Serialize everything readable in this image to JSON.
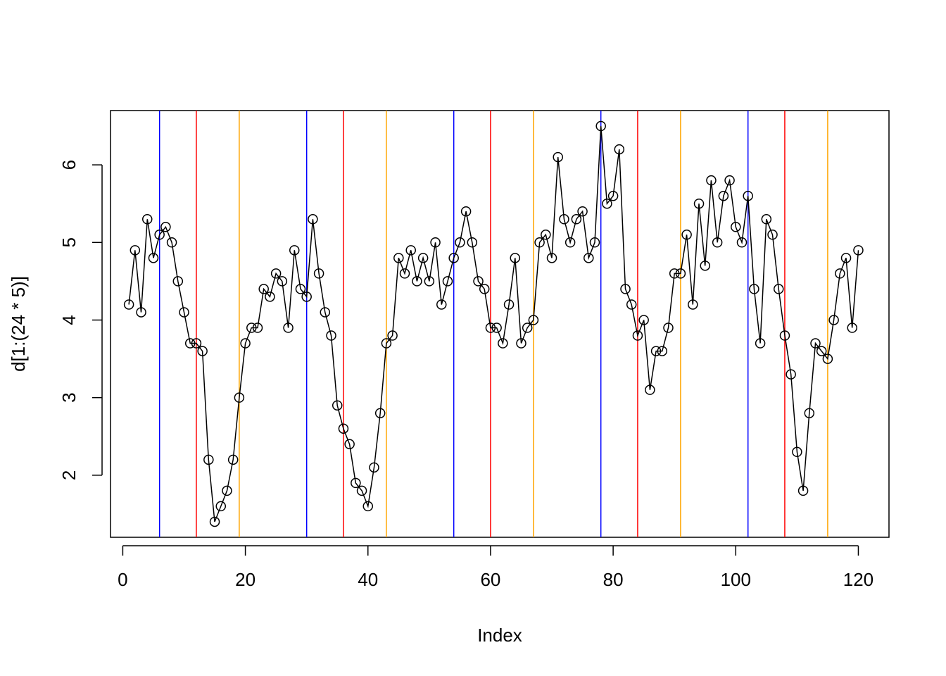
{
  "chart_data": {
    "type": "line",
    "title": "",
    "xlabel": "Index",
    "ylabel": "d[1:(24 * 5)]",
    "xlim": [
      -2,
      125
    ],
    "ylim": [
      1.2,
      6.7
    ],
    "xticks": [
      0,
      20,
      40,
      60,
      80,
      100,
      120
    ],
    "yticks": [
      2,
      3,
      4,
      5,
      6
    ],
    "grid": false,
    "legend": "none",
    "series": [
      {
        "color": "#000000",
        "marker": "open-circle",
        "x": [
          1,
          2,
          3,
          4,
          5,
          6,
          7,
          8,
          9,
          10,
          11,
          12,
          13,
          14,
          15,
          16,
          17,
          18,
          19,
          20,
          21,
          22,
          23,
          24,
          25,
          26,
          27,
          28,
          29,
          30,
          31,
          32,
          33,
          34,
          35,
          36,
          37,
          38,
          39,
          40,
          41,
          42,
          43,
          44,
          45,
          46,
          47,
          48,
          49,
          50,
          51,
          52,
          53,
          54,
          55,
          56,
          57,
          58,
          59,
          60,
          61,
          62,
          63,
          64,
          65,
          66,
          67,
          68,
          69,
          70,
          71,
          72,
          73,
          74,
          75,
          76,
          77,
          78,
          79,
          80,
          81,
          82,
          83,
          84,
          85,
          86,
          87,
          88,
          89,
          90,
          91,
          92,
          93,
          94,
          95,
          96,
          97,
          98,
          99,
          100,
          101,
          102,
          103,
          104,
          105,
          106,
          107,
          108,
          109,
          110,
          111,
          112,
          113,
          114,
          115,
          116,
          117,
          118,
          119,
          120
        ],
        "values": [
          4.2,
          4.9,
          4.1,
          5.3,
          4.8,
          5.1,
          5.2,
          5.0,
          4.5,
          4.1,
          3.7,
          3.7,
          3.6,
          2.2,
          1.4,
          1.6,
          1.8,
          2.2,
          3.0,
          3.7,
          3.9,
          3.9,
          4.4,
          4.3,
          4.6,
          4.5,
          3.9,
          4.9,
          4.4,
          4.3,
          5.3,
          4.6,
          4.1,
          3.8,
          2.9,
          2.6,
          2.4,
          1.9,
          1.8,
          1.6,
          2.1,
          2.8,
          3.7,
          3.8,
          4.8,
          4.6,
          4.9,
          4.5,
          4.8,
          4.5,
          5.0,
          4.2,
          4.5,
          4.8,
          5.0,
          5.4,
          5.0,
          4.5,
          4.4,
          3.9,
          3.9,
          3.7,
          4.2,
          4.8,
          3.7,
          3.9,
          4.0,
          5.0,
          5.1,
          4.8,
          6.1,
          5.3,
          5.0,
          5.3,
          5.4,
          4.8,
          5.0,
          6.5,
          5.5,
          5.6,
          6.2,
          4.4,
          4.2,
          3.8,
          4.0,
          3.1,
          3.6,
          3.6,
          3.9,
          4.6,
          4.6,
          5.1,
          4.2,
          5.5,
          4.7,
          5.8,
          5.0,
          5.6,
          5.8,
          5.2,
          5.0,
          5.6,
          4.4,
          3.7,
          5.3,
          5.1,
          4.4,
          3.8,
          3.3,
          2.3,
          1.8,
          2.8,
          3.7,
          3.6,
          3.5,
          4.0,
          4.6,
          4.8,
          3.9,
          4.9
        ]
      }
    ],
    "vlines": [
      {
        "x": 6,
        "color": "#0000ff"
      },
      {
        "x": 12,
        "color": "#ff0000"
      },
      {
        "x": 19,
        "color": "#ffa500"
      },
      {
        "x": 30,
        "color": "#0000ff"
      },
      {
        "x": 36,
        "color": "#ff0000"
      },
      {
        "x": 43,
        "color": "#ffa500"
      },
      {
        "x": 54,
        "color": "#0000ff"
      },
      {
        "x": 60,
        "color": "#ff0000"
      },
      {
        "x": 67,
        "color": "#ffa500"
      },
      {
        "x": 78,
        "color": "#0000ff"
      },
      {
        "x": 84,
        "color": "#ff0000"
      },
      {
        "x": 91,
        "color": "#ffa500"
      },
      {
        "x": 102,
        "color": "#0000ff"
      },
      {
        "x": 108,
        "color": "#ff0000"
      },
      {
        "x": 115,
        "color": "#ffa500"
      }
    ]
  }
}
